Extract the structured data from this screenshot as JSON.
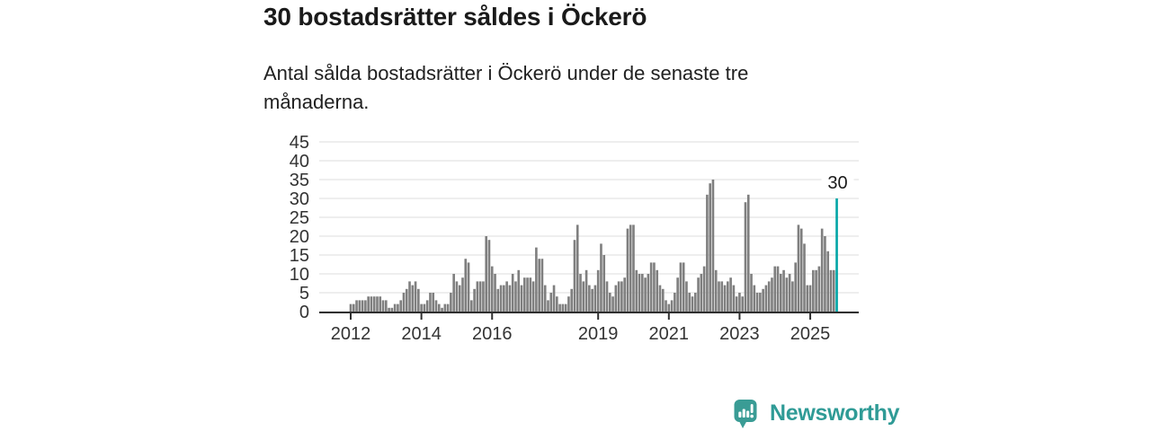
{
  "header": {
    "title": "30 bostadsrätter såldes i Öckerö",
    "subtitle_lines": [
      "Antal sålda bostadsrätter i Öckerö under de senaste tre",
      "månaderna."
    ]
  },
  "chart_data": {
    "type": "bar",
    "title": "30 bostadsrätter såldes i Öckerö",
    "xlabel": "",
    "ylabel": "",
    "ylim": [
      0,
      45
    ],
    "grid": true,
    "y_ticks": [
      0,
      5,
      10,
      15,
      20,
      25,
      30,
      35,
      40,
      45
    ],
    "x_tick_labels": [
      "2012",
      "2014",
      "2016",
      "2019",
      "2021",
      "2023",
      "2025"
    ],
    "x_tick_indices": [
      0,
      24,
      48,
      84,
      108,
      132,
      156
    ],
    "period_start": "2012",
    "period_end": "2025",
    "values": [
      2,
      2,
      3,
      3,
      3,
      3,
      4,
      4,
      4,
      4,
      4,
      3,
      3,
      1,
      1,
      2,
      2,
      3,
      5,
      6,
      8,
      7,
      8,
      6,
      2,
      2,
      3,
      5,
      5,
      3,
      2,
      1,
      2,
      2,
      5,
      10,
      8,
      7,
      9,
      14,
      13,
      3,
      6,
      8,
      8,
      8,
      20,
      19,
      12,
      10,
      6,
      7,
      7,
      8,
      7,
      10,
      8,
      11,
      7,
      9,
      9,
      9,
      8,
      17,
      14,
      14,
      7,
      3,
      5,
      7,
      4,
      2,
      2,
      2,
      4,
      6,
      19,
      23,
      10,
      8,
      11,
      7,
      6,
      7,
      11,
      18,
      15,
      8,
      5,
      4,
      7,
      8,
      8,
      9,
      22,
      23,
      23,
      11,
      10,
      10,
      9,
      10,
      13,
      13,
      11,
      7,
      6,
      3,
      2,
      3,
      5,
      9,
      13,
      13,
      8,
      5,
      4,
      5,
      9,
      10,
      12,
      31,
      34,
      35,
      11,
      8,
      8,
      7,
      8,
      9,
      7,
      4,
      5,
      4,
      29,
      31,
      10,
      7,
      5,
      5,
      6,
      7,
      8,
      9,
      12,
      12,
      10,
      11,
      9,
      10,
      8,
      13,
      23,
      22,
      18,
      7,
      7,
      11,
      11,
      12,
      22,
      20,
      16,
      11,
      11,
      30
    ],
    "highlight_index": 165,
    "highlight_value": 30,
    "highlight_label": "30",
    "colors": {
      "bar": "#7f7f7f",
      "highlight": "#00a5a6",
      "grid": "#dcdcdc",
      "axis": "#2f2f2f",
      "tick_text": "#333333",
      "annotation_text": "#1a1a1a"
    }
  },
  "footer": {
    "brand": "Newsworthy",
    "brand_color": "#2f9b96",
    "logo_color": "#3a9c95"
  }
}
